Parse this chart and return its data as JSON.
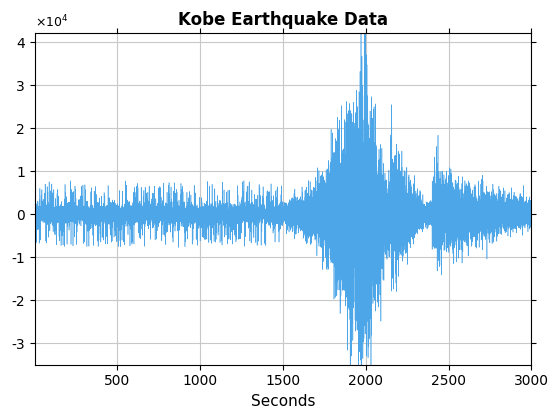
{
  "title": "Kobe Earthquake Data",
  "xlabel": "Seconds",
  "xlim": [
    0,
    3000
  ],
  "ylim": [
    -35000,
    42000
  ],
  "yticks": [
    -30000,
    -20000,
    -10000,
    0,
    10000,
    20000,
    30000,
    40000
  ],
  "xticks": [
    500,
    1000,
    1500,
    2000,
    2500,
    3000
  ],
  "line_color": "#4da6e8",
  "bg_color": "#ffffff",
  "grid_color": "#c8c8c8",
  "seed": 12345,
  "n_points": 60000,
  "x_end": 3000
}
